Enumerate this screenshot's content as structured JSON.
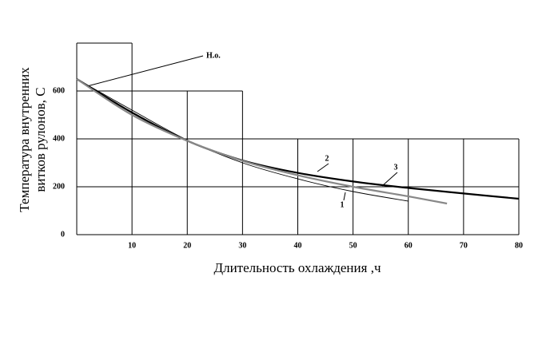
{
  "chart_data": {
    "type": "line",
    "xlabel": "Длительность охлаждения ,ч",
    "ylabel": [
      "Температура внутренних",
      "витков рулонов, С"
    ],
    "annotation": "Н.о.",
    "xlim": [
      0,
      80
    ],
    "xticks": [
      10,
      20,
      30,
      40,
      50,
      60,
      70,
      80
    ],
    "ylim": [
      0,
      800
    ],
    "yticks": [
      0,
      200,
      400,
      600
    ],
    "series": [
      {
        "name": "1",
        "color": "#000000",
        "x": [
          0,
          10,
          20,
          30,
          40,
          50,
          60
        ],
        "values": [
          650,
          520,
          395,
          300,
          233,
          180,
          140
        ]
      },
      {
        "name": "2",
        "color": "#000000",
        "x": [
          0,
          10,
          20,
          30,
          40,
          50,
          60,
          70,
          80
        ],
        "values": [
          650,
          510,
          392,
          310,
          258,
          222,
          195,
          172,
          150
        ]
      },
      {
        "name": "3",
        "color": "#888888",
        "x": [
          0,
          10,
          20,
          30,
          40,
          50,
          60,
          67
        ],
        "values": [
          650,
          500,
          392,
          308,
          248,
          200,
          160,
          130
        ]
      }
    ]
  }
}
